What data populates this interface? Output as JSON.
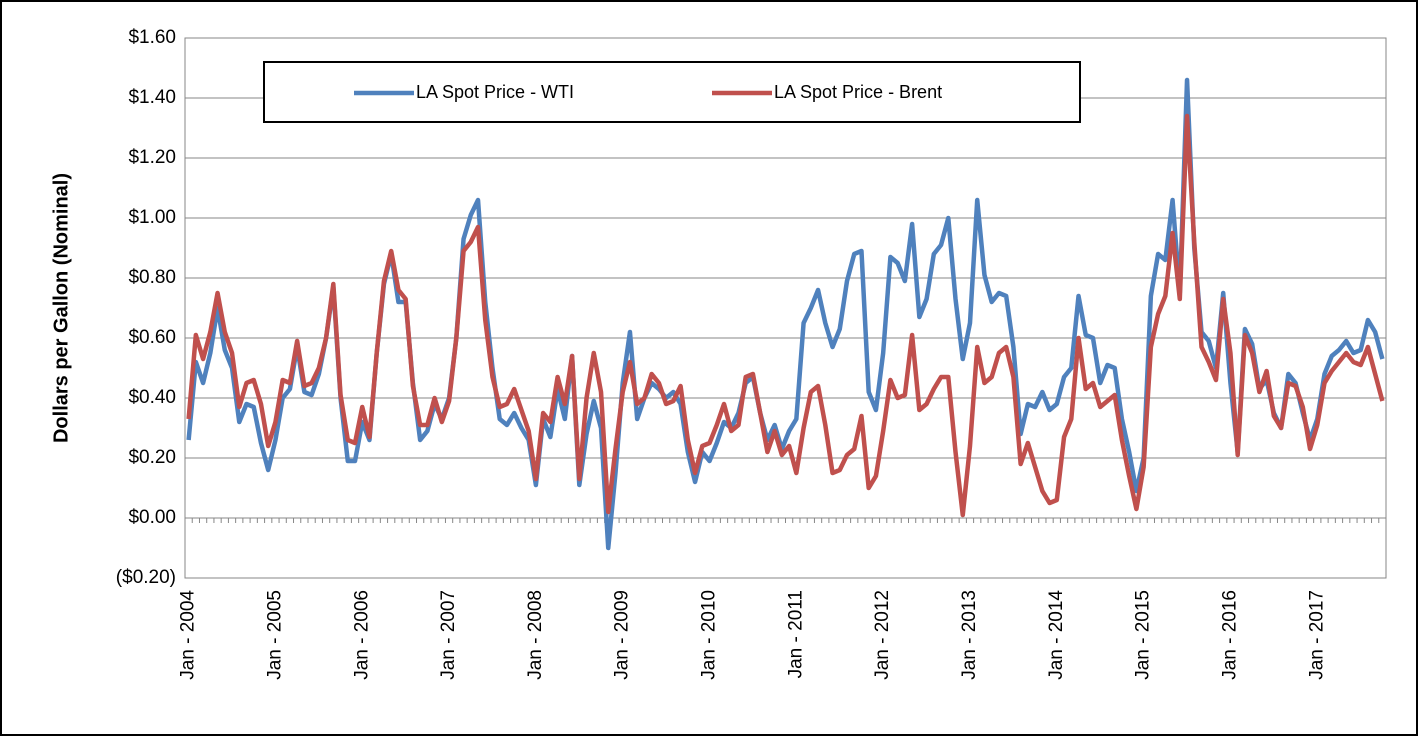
{
  "chart_data": {
    "type": "line",
    "y_label": "Dollars per Gallon (Nominal)",
    "categories": [
      "Jan - 2004",
      null,
      null,
      null,
      null,
      null,
      null,
      null,
      null,
      null,
      null,
      null,
      "Jan - 2005",
      null,
      null,
      null,
      null,
      null,
      null,
      null,
      null,
      null,
      null,
      null,
      "Jan - 2006",
      null,
      null,
      null,
      null,
      null,
      null,
      null,
      null,
      null,
      null,
      null,
      "Jan - 2007",
      null,
      null,
      null,
      null,
      null,
      null,
      null,
      null,
      null,
      null,
      null,
      "Jan - 2008",
      null,
      null,
      null,
      null,
      null,
      null,
      null,
      null,
      null,
      null,
      null,
      "Jan - 2009",
      null,
      null,
      null,
      null,
      null,
      null,
      null,
      null,
      null,
      null,
      null,
      "Jan - 2010",
      null,
      null,
      null,
      null,
      null,
      null,
      null,
      null,
      null,
      null,
      null,
      "Jan - 2011",
      null,
      null,
      null,
      null,
      null,
      null,
      null,
      null,
      null,
      null,
      null,
      "Jan - 2012",
      null,
      null,
      null,
      null,
      null,
      null,
      null,
      null,
      null,
      null,
      null,
      "Jan - 2013",
      null,
      null,
      null,
      null,
      null,
      null,
      null,
      null,
      null,
      null,
      null,
      "Jan - 2014",
      null,
      null,
      null,
      null,
      null,
      null,
      null,
      null,
      null,
      null,
      null,
      "Jan - 2015",
      null,
      null,
      null,
      null,
      null,
      null,
      null,
      null,
      null,
      null,
      null,
      "Jan - 2016",
      null,
      null,
      null,
      null,
      null,
      null,
      null,
      null,
      null,
      null,
      null,
      "Jan - 2017",
      null,
      null,
      null,
      null,
      null,
      null,
      null,
      null,
      null
    ],
    "series": [
      {
        "name": "LA Spot Price - WTI",
        "color": "#4f81bd",
        "values": [
          0.26,
          0.52,
          0.45,
          0.55,
          0.7,
          0.56,
          0.5,
          0.32,
          0.38,
          0.37,
          0.25,
          0.16,
          0.26,
          0.4,
          0.43,
          0.57,
          0.42,
          0.41,
          0.48,
          0.6,
          0.77,
          0.4,
          0.19,
          0.19,
          0.32,
          0.26,
          0.55,
          0.78,
          0.88,
          0.72,
          0.72,
          0.45,
          0.26,
          0.29,
          0.38,
          0.33,
          0.4,
          0.6,
          0.93,
          1.01,
          1.06,
          0.72,
          0.5,
          0.33,
          0.31,
          0.35,
          0.3,
          0.26,
          0.11,
          0.33,
          0.27,
          0.43,
          0.33,
          0.54,
          0.11,
          0.28,
          0.39,
          0.3,
          -0.1,
          0.15,
          0.45,
          0.62,
          0.33,
          0.4,
          0.45,
          0.43,
          0.4,
          0.42,
          0.38,
          0.22,
          0.12,
          0.22,
          0.19,
          0.25,
          0.32,
          0.3,
          0.35,
          0.45,
          0.47,
          0.35,
          0.26,
          0.31,
          0.23,
          0.29,
          0.33,
          0.65,
          0.7,
          0.76,
          0.65,
          0.57,
          0.63,
          0.79,
          0.88,
          0.89,
          0.42,
          0.36,
          0.55,
          0.87,
          0.85,
          0.79,
          0.98,
          0.67,
          0.73,
          0.88,
          0.91,
          1.0,
          0.73,
          0.53,
          0.65,
          1.06,
          0.81,
          0.72,
          0.75,
          0.74,
          0.57,
          0.28,
          0.38,
          0.37,
          0.42,
          0.36,
          0.38,
          0.47,
          0.5,
          0.74,
          0.61,
          0.6,
          0.45,
          0.51,
          0.5,
          0.33,
          0.22,
          0.09,
          0.2,
          0.74,
          0.88,
          0.86,
          1.06,
          0.75,
          1.46,
          0.9,
          0.62,
          0.59,
          0.5,
          0.75,
          0.45,
          0.22,
          0.63,
          0.58,
          0.43,
          0.46,
          0.35,
          0.3,
          0.48,
          0.45,
          0.35,
          0.26,
          0.33,
          0.48,
          0.54,
          0.56,
          0.59,
          0.55,
          0.56,
          0.66,
          0.62,
          0.53
        ]
      },
      {
        "name": "LA Spot Price - Brent",
        "color": "#c0504d",
        "values": [
          0.33,
          0.61,
          0.53,
          0.62,
          0.75,
          0.62,
          0.55,
          0.37,
          0.45,
          0.46,
          0.38,
          0.24,
          0.32,
          0.46,
          0.45,
          0.59,
          0.44,
          0.45,
          0.5,
          0.6,
          0.78,
          0.41,
          0.26,
          0.25,
          0.37,
          0.27,
          0.55,
          0.79,
          0.89,
          0.76,
          0.73,
          0.44,
          0.31,
          0.31,
          0.4,
          0.32,
          0.39,
          0.6,
          0.89,
          0.92,
          0.97,
          0.66,
          0.47,
          0.37,
          0.38,
          0.43,
          0.36,
          0.29,
          0.13,
          0.35,
          0.32,
          0.47,
          0.38,
          0.54,
          0.13,
          0.4,
          0.55,
          0.42,
          0.02,
          0.23,
          0.42,
          0.52,
          0.38,
          0.4,
          0.48,
          0.45,
          0.38,
          0.39,
          0.44,
          0.26,
          0.15,
          0.24,
          0.25,
          0.31,
          0.38,
          0.29,
          0.31,
          0.47,
          0.48,
          0.35,
          0.22,
          0.29,
          0.21,
          0.24,
          0.15,
          0.3,
          0.42,
          0.44,
          0.31,
          0.15,
          0.16,
          0.21,
          0.23,
          0.34,
          0.1,
          0.14,
          0.29,
          0.46,
          0.4,
          0.41,
          0.61,
          0.36,
          0.38,
          0.43,
          0.47,
          0.47,
          0.22,
          0.01,
          0.24,
          0.57,
          0.45,
          0.47,
          0.55,
          0.57,
          0.47,
          0.18,
          0.25,
          0.17,
          0.09,
          0.05,
          0.06,
          0.27,
          0.33,
          0.6,
          0.43,
          0.45,
          0.37,
          0.39,
          0.41,
          0.26,
          0.14,
          0.03,
          0.17,
          0.57,
          0.68,
          0.74,
          0.95,
          0.73,
          1.34,
          0.92,
          0.57,
          0.52,
          0.46,
          0.73,
          0.55,
          0.21,
          0.61,
          0.55,
          0.42,
          0.49,
          0.34,
          0.3,
          0.45,
          0.44,
          0.37,
          0.23,
          0.31,
          0.45,
          0.49,
          0.52,
          0.55,
          0.52,
          0.51,
          0.57,
          0.48,
          0.39
        ]
      }
    ],
    "ylim": [
      -0.2,
      1.6
    ],
    "yticks": [
      {
        "value": -0.2,
        "label": "($0.20)"
      },
      {
        "value": 0,
        "label": "$0.00"
      },
      {
        "value": 0.2,
        "label": "$0.20"
      },
      {
        "value": 0.4,
        "label": "$0.40"
      },
      {
        "value": 0.6,
        "label": "$0.60"
      },
      {
        "value": 0.8,
        "label": "$0.80"
      },
      {
        "value": 1.0,
        "label": "$1.00"
      },
      {
        "value": 1.2,
        "label": "$1.20"
      },
      {
        "value": 1.4,
        "label": "$1.40"
      },
      {
        "value": 1.6,
        "label": "$1.60"
      }
    ],
    "negative_tick_color": "#ff0000",
    "grid": true,
    "legend": "top"
  }
}
